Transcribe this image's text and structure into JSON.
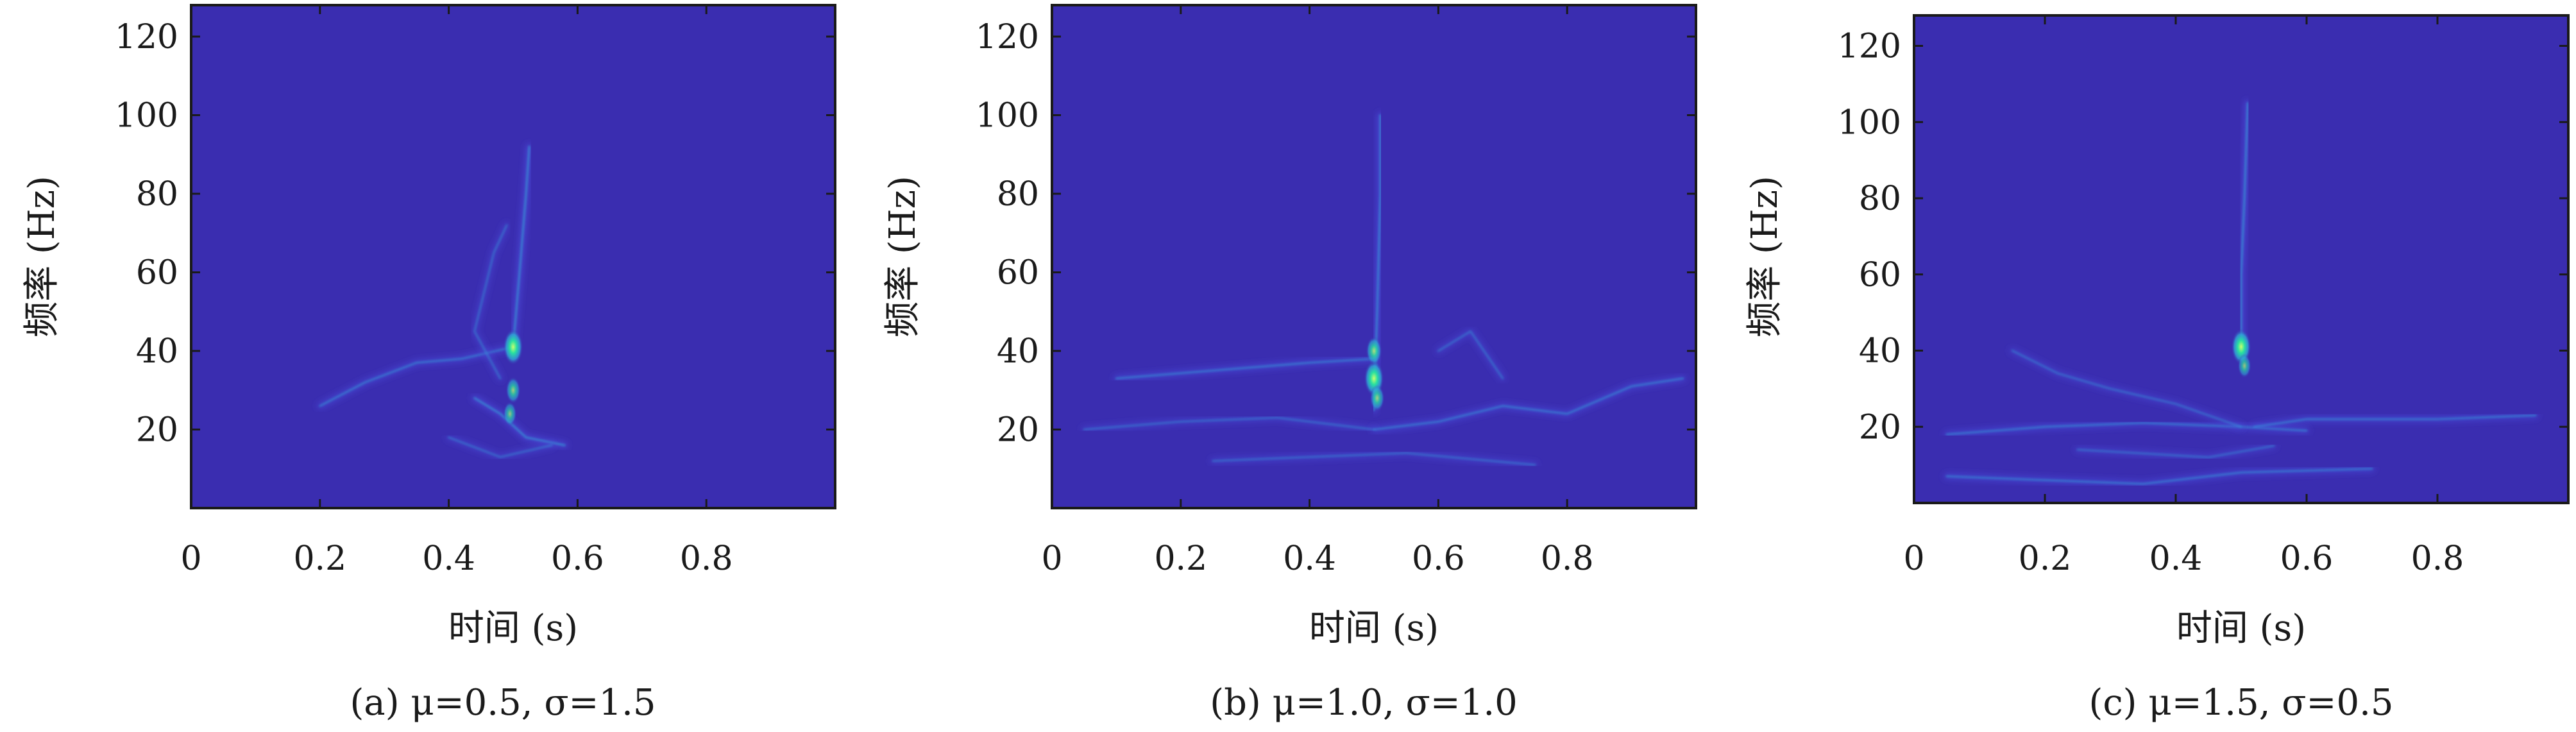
{
  "colors": {
    "background": "#3a2db0",
    "ridge_low": "#4a48d8",
    "ridge_mid": "#2fa6d8",
    "ridge_peak": "#28e0a0",
    "axis": "#1a1a1a"
  },
  "chart_data": [
    {
      "type": "heatmap",
      "xlabel": "时间 (s)",
      "ylabel": "频率 (Hz)",
      "caption": "(a) μ=0.5, σ=1.5",
      "x_ticks": [
        "0",
        "0.2",
        "0.4",
        "0.6",
        "0.8"
      ],
      "x_tick_values": [
        0,
        0.2,
        0.4,
        0.6,
        0.8
      ],
      "y_ticks": [
        "20",
        "40",
        "60",
        "80",
        "100",
        "120"
      ],
      "y_tick_values": [
        20,
        40,
        60,
        80,
        100,
        120
      ],
      "xlim": [
        0,
        1
      ],
      "ylim": [
        0,
        128
      ],
      "ridges": [
        {
          "intensity": 0.25,
          "points": [
            [
              0.2,
              26
            ],
            [
              0.27,
              32
            ],
            [
              0.35,
              37
            ],
            [
              0.42,
              38
            ],
            [
              0.5,
              41
            ]
          ]
        },
        {
          "intensity": 0.3,
          "points": [
            [
              0.44,
              28
            ],
            [
              0.48,
              24
            ],
            [
              0.52,
              18
            ],
            [
              0.58,
              16
            ]
          ]
        },
        {
          "intensity": 0.3,
          "points": [
            [
              0.5,
              41
            ],
            [
              0.51,
              60
            ],
            [
              0.52,
              80
            ],
            [
              0.525,
              92
            ]
          ]
        },
        {
          "intensity": 0.2,
          "points": [
            [
              0.4,
              18
            ],
            [
              0.48,
              13
            ],
            [
              0.56,
              16
            ]
          ]
        },
        {
          "intensity": 0.2,
          "points": [
            [
              0.48,
              33
            ],
            [
              0.44,
              45
            ],
            [
              0.47,
              65
            ],
            [
              0.49,
              72
            ]
          ]
        }
      ],
      "peaks": [
        {
          "t": 0.5,
          "f": 41,
          "intensity": 1.0
        },
        {
          "t": 0.495,
          "f": 24,
          "intensity": 0.5
        },
        {
          "t": 0.5,
          "f": 30,
          "intensity": 0.6
        }
      ]
    },
    {
      "type": "heatmap",
      "xlabel": "时间 (s)",
      "ylabel": "频率 (Hz)",
      "caption": "(b) μ=1.0, σ=1.0",
      "x_ticks": [
        "0",
        "0.2",
        "0.4",
        "0.6",
        "0.8"
      ],
      "x_tick_values": [
        0,
        0.2,
        0.4,
        0.6,
        0.8
      ],
      "y_ticks": [
        "20",
        "40",
        "60",
        "80",
        "100",
        "120"
      ],
      "y_tick_values": [
        20,
        40,
        60,
        80,
        100,
        120
      ],
      "xlim": [
        0,
        1
      ],
      "ylim": [
        0,
        128
      ],
      "ridges": [
        {
          "intensity": 0.2,
          "points": [
            [
              0.05,
              20
            ],
            [
              0.2,
              22
            ],
            [
              0.35,
              23
            ],
            [
              0.5,
              20
            ]
          ]
        },
        {
          "intensity": 0.25,
          "points": [
            [
              0.1,
              33
            ],
            [
              0.25,
              35
            ],
            [
              0.4,
              37
            ],
            [
              0.5,
              38
            ]
          ]
        },
        {
          "intensity": 0.25,
          "points": [
            [
              0.5,
              20
            ],
            [
              0.6,
              22
            ],
            [
              0.7,
              26
            ],
            [
              0.8,
              24
            ],
            [
              0.9,
              31
            ],
            [
              0.98,
              33
            ]
          ]
        },
        {
          "intensity": 0.2,
          "points": [
            [
              0.6,
              40
            ],
            [
              0.65,
              45
            ],
            [
              0.7,
              33
            ]
          ]
        },
        {
          "intensity": 0.3,
          "points": [
            [
              0.5,
              25
            ],
            [
              0.505,
              50
            ],
            [
              0.51,
              80
            ],
            [
              0.51,
              100
            ]
          ]
        },
        {
          "intensity": 0.2,
          "points": [
            [
              0.25,
              12
            ],
            [
              0.4,
              13
            ],
            [
              0.55,
              14
            ],
            [
              0.75,
              11
            ]
          ]
        }
      ],
      "peaks": [
        {
          "t": 0.5,
          "f": 33,
          "intensity": 1.0
        },
        {
          "t": 0.5,
          "f": 40,
          "intensity": 0.7
        },
        {
          "t": 0.505,
          "f": 28,
          "intensity": 0.6
        }
      ]
    },
    {
      "type": "heatmap",
      "xlabel": "时间 (s)",
      "ylabel": "频率 (Hz)",
      "caption": "(c) μ=1.5, σ=0.5",
      "x_ticks": [
        "0",
        "0.2",
        "0.4",
        "0.6",
        "0.8"
      ],
      "x_tick_values": [
        0,
        0.2,
        0.4,
        0.6,
        0.8
      ],
      "y_ticks": [
        "20",
        "40",
        "60",
        "80",
        "100",
        "120"
      ],
      "y_tick_values": [
        20,
        40,
        60,
        80,
        100,
        120
      ],
      "xlim": [
        0,
        1
      ],
      "ylim": [
        0,
        128
      ],
      "ridges": [
        {
          "intensity": 0.25,
          "points": [
            [
              0.05,
              7
            ],
            [
              0.2,
              6
            ],
            [
              0.35,
              5
            ],
            [
              0.5,
              8
            ],
            [
              0.7,
              9
            ]
          ]
        },
        {
          "intensity": 0.25,
          "points": [
            [
              0.05,
              18
            ],
            [
              0.2,
              20
            ],
            [
              0.35,
              21
            ],
            [
              0.5,
              20
            ],
            [
              0.6,
              19
            ]
          ]
        },
        {
          "intensity": 0.2,
          "points": [
            [
              0.15,
              40
            ],
            [
              0.22,
              34
            ],
            [
              0.3,
              30
            ],
            [
              0.4,
              26
            ],
            [
              0.5,
              20
            ]
          ]
        },
        {
          "intensity": 0.25,
          "points": [
            [
              0.52,
              20
            ],
            [
              0.6,
              22
            ],
            [
              0.7,
              22
            ],
            [
              0.8,
              22
            ],
            [
              0.95,
              23
            ]
          ]
        },
        {
          "intensity": 0.3,
          "points": [
            [
              0.5,
              41
            ],
            [
              0.5,
              60
            ],
            [
              0.505,
              80
            ],
            [
              0.51,
              105
            ]
          ]
        },
        {
          "intensity": 0.2,
          "points": [
            [
              0.25,
              14
            ],
            [
              0.35,
              13
            ],
            [
              0.45,
              12
            ],
            [
              0.55,
              15
            ]
          ]
        }
      ],
      "peaks": [
        {
          "t": 0.5,
          "f": 41,
          "intensity": 1.0
        },
        {
          "t": 0.505,
          "f": 36,
          "intensity": 0.5
        }
      ]
    }
  ]
}
